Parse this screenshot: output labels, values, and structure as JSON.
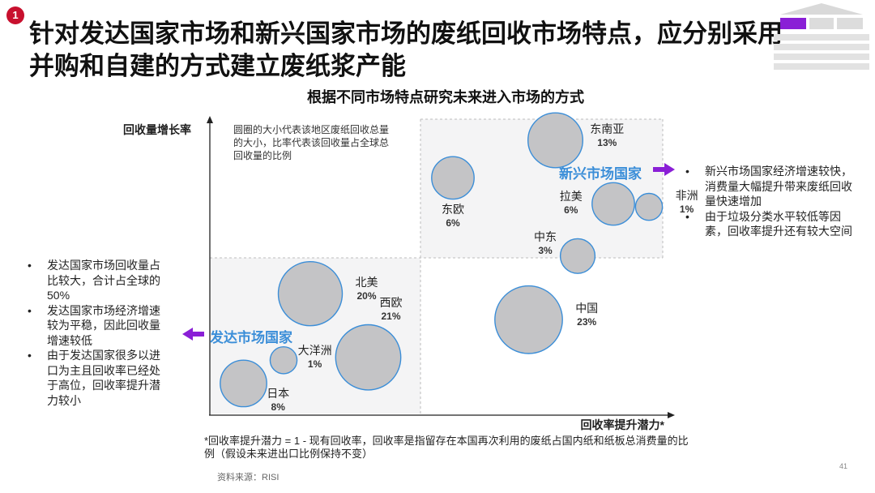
{
  "slide": {
    "badge": "1",
    "title": "针对发达国家市场和新兴国家市场的废纸回收市场特点，应分别采用并购和自建的方式建立废纸浆产能",
    "page_number": "41",
    "source": "资料来源：RISI",
    "footnote": "*回收率提升潜力 = 1 - 现有回收率，回收率是指留存在本国再次利用的废纸占国内纸和纸板总消费量的比例（假设未来进出口比例保持不变）"
  },
  "colors": {
    "badge": "#c8102e",
    "accent_purple": "#8a1fd6",
    "group_blue": "#3b8ed8",
    "bubble_fill": "#c4c4c6",
    "quadrant_fill": "#f4f4f5"
  },
  "chart_data": {
    "type": "scatter",
    "title": "根据不同市场特点研究未来进入市场的方式",
    "xlabel": "回收率提升潜力*",
    "ylabel": "回收量增长率",
    "note": "圆圈的大小代表该地区废纸回收总量的大小，比率代表该回收量占全球总回收量的比例",
    "points": [
      {
        "name": "东南亚",
        "share": "13%",
        "value": 13,
        "x": 0.77,
        "y": 0.93
      },
      {
        "name": "东欧",
        "share": "6%",
        "value": 6,
        "x": 0.54,
        "y": 0.8
      },
      {
        "name": "拉美",
        "share": "6%",
        "value": 6,
        "x": 0.9,
        "y": 0.71
      },
      {
        "name": "非洲",
        "share": "1%",
        "value": 1,
        "x": 0.98,
        "y": 0.7
      },
      {
        "name": "中东",
        "share": "3%",
        "value": 3,
        "x": 0.82,
        "y": 0.53
      },
      {
        "name": "北美",
        "share": "20%",
        "value": 20,
        "x": 0.22,
        "y": 0.4
      },
      {
        "name": "西欧",
        "share": "21%",
        "value": 21,
        "x": 0.35,
        "y": 0.18
      },
      {
        "name": "中国",
        "share": "23%",
        "value": 23,
        "x": 0.71,
        "y": 0.31
      },
      {
        "name": "大洋洲",
        "share": "1%",
        "value": 1,
        "x": 0.16,
        "y": 0.17
      },
      {
        "name": "日本",
        "share": "8%",
        "value": 8,
        "x": 0.07,
        "y": 0.09
      }
    ],
    "groups": [
      {
        "name": "新兴市场国家",
        "quadrant": "top-right"
      },
      {
        "name": "发达市场国家",
        "quadrant": "bottom-left"
      }
    ],
    "grid": false
  },
  "notes": {
    "developed": [
      "发达国家市场回收量占比较大，合计占全球的50%",
      "发达国家市场经济增速较为平稳，因此回收量增速较低",
      "由于发达国家很多以进口为主且回收率已经处于高位，回收率提升潜力较小"
    ],
    "emerging": [
      "新兴市场国家经济增速较快，消费量大幅提升带来废纸回收量快速增加",
      "由于垃圾分类水平较低等因素，回收率提升还有较大空间"
    ]
  }
}
